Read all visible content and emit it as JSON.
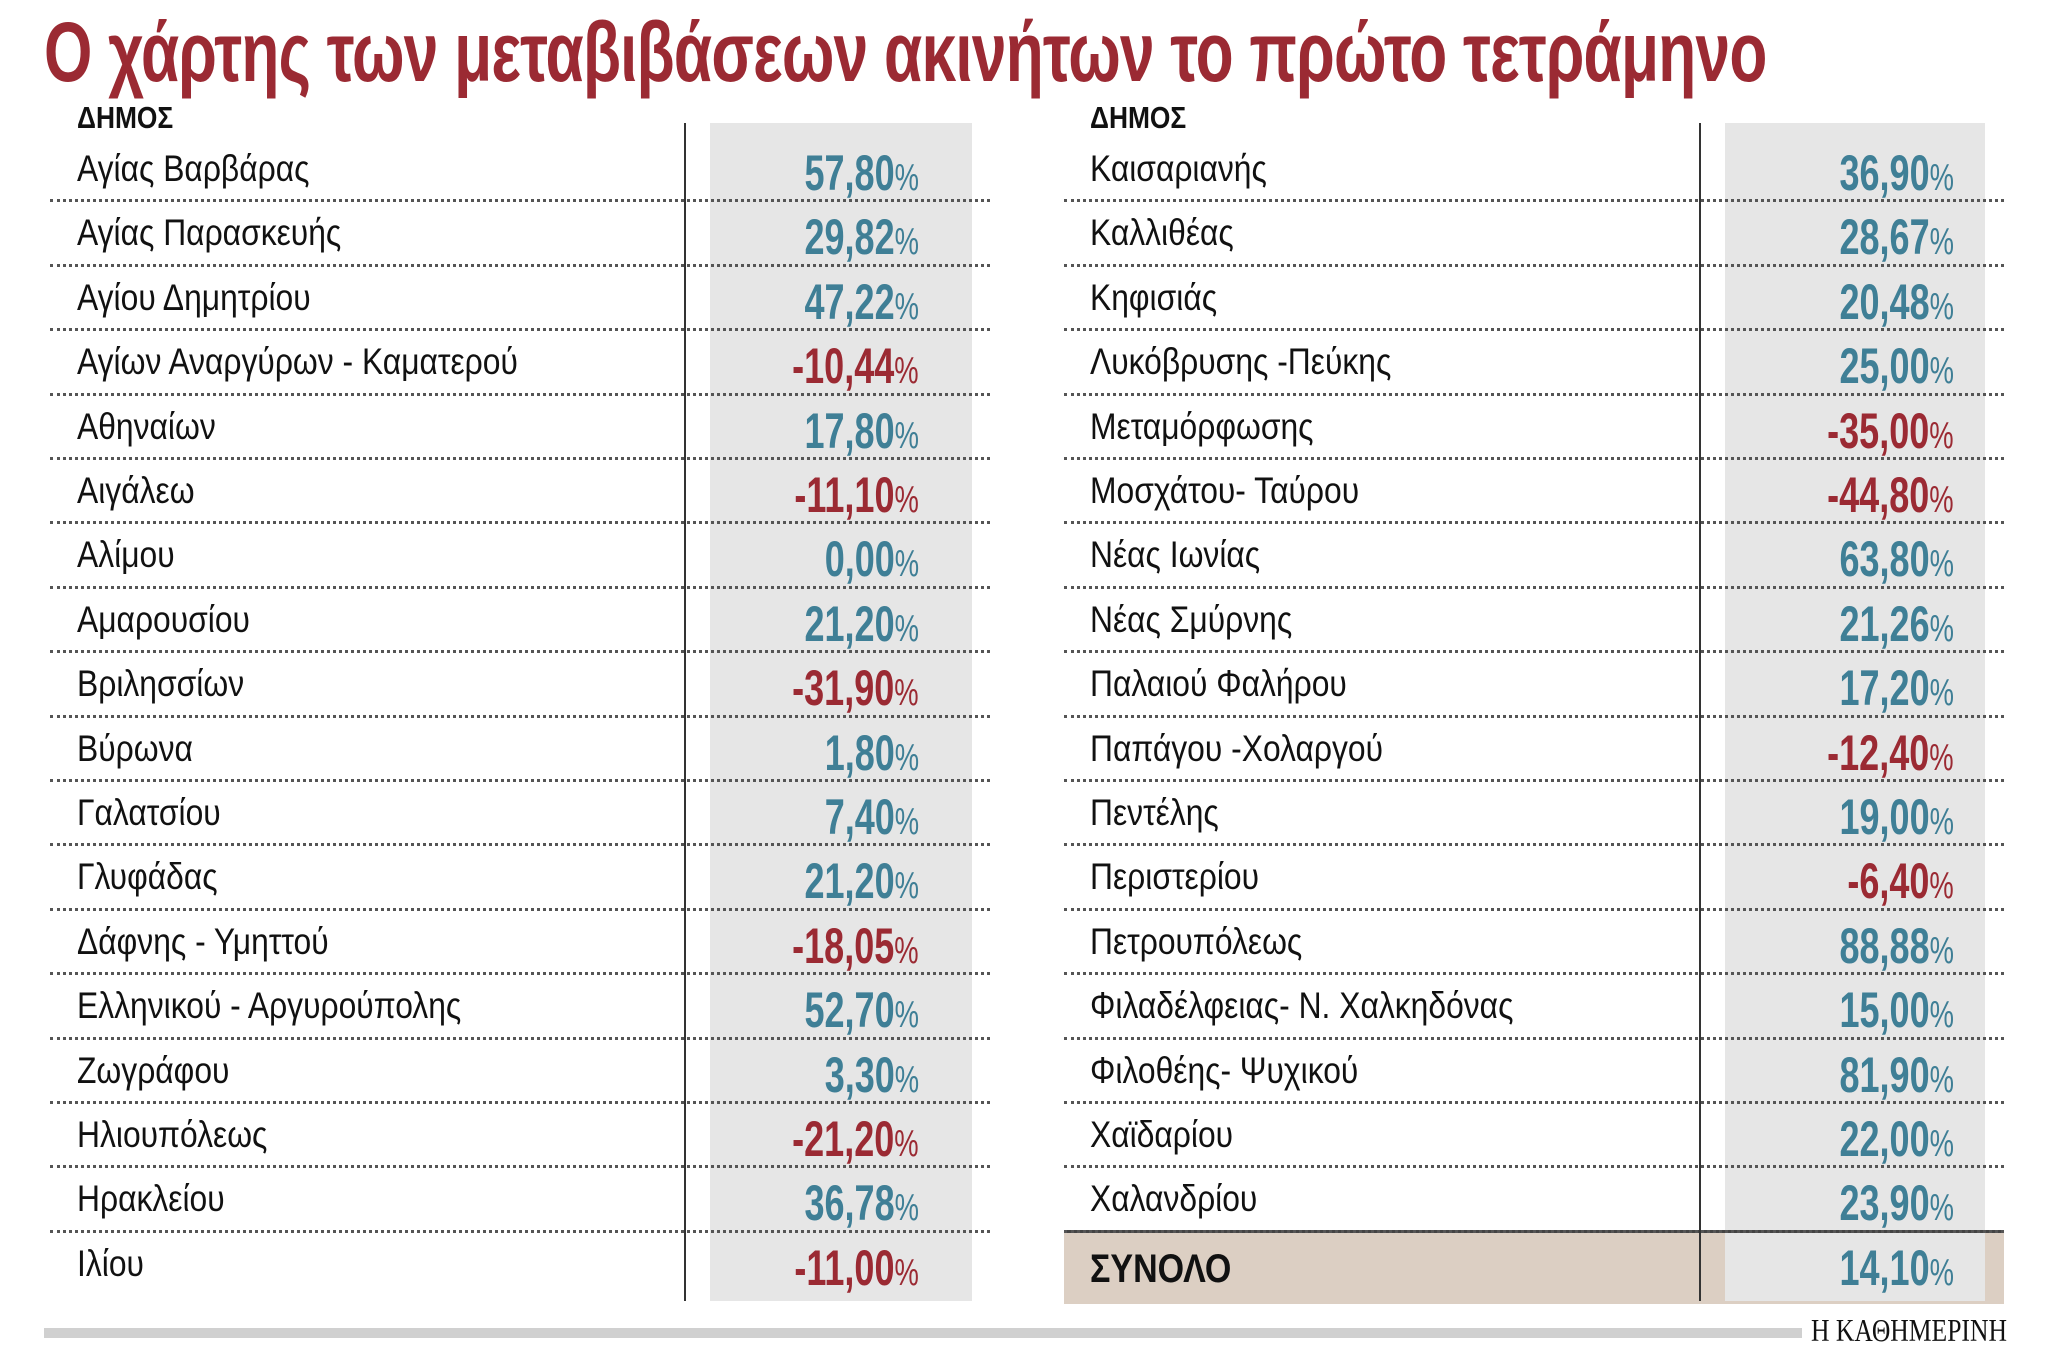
{
  "title": "Ο χάρτης των μεταβιβάσεων ακινήτων το πρώτο τετράμηνο",
  "column_header": "ΔΗΜΟΣ",
  "colors": {
    "title": "#9b2a33",
    "positive": "#3f7f96",
    "negative": "#9b2a33",
    "value_bg": "#e6e6e6",
    "total_bg": "#dccfc3"
  },
  "left_rows": [
    {
      "name": "Αγίας Βαρβάρας",
      "value": "57,80"
    },
    {
      "name": "Αγίας Παρασκευής",
      "value": "29,82"
    },
    {
      "name": "Αγίου Δημητρίου",
      "value": "47,22"
    },
    {
      "name": "Αγίων Αναργύρων - Καματερού",
      "value": "-10,44"
    },
    {
      "name": "Αθηναίων",
      "value": "17,80"
    },
    {
      "name": "Αιγάλεω",
      "value": "-11,10"
    },
    {
      "name": "Αλίμου",
      "value": "0,00"
    },
    {
      "name": "Αμαρουσίου",
      "value": "21,20"
    },
    {
      "name": "Βριλησσίων",
      "value": "-31,90"
    },
    {
      "name": "Βύρωνα",
      "value": "1,80"
    },
    {
      "name": "Γαλατσίου",
      "value": "7,40"
    },
    {
      "name": "Γλυφάδας",
      "value": "21,20"
    },
    {
      "name": "Δάφνης - Υμηττού",
      "value": "-18,05"
    },
    {
      "name": "Ελληνικού - Αργυρούπολης",
      "value": "52,70"
    },
    {
      "name": "Ζωγράφου",
      "value": "3,30"
    },
    {
      "name": "Ηλιουπόλεως",
      "value": "-21,20"
    },
    {
      "name": "Ηρακλείου",
      "value": "36,78"
    },
    {
      "name": "Ιλίου",
      "value": "-11,00"
    }
  ],
  "right_rows": [
    {
      "name": "Καισαριανής",
      "value": "36,90"
    },
    {
      "name": "Καλλιθέας",
      "value": "28,67"
    },
    {
      "name": "Κηφισιάς",
      "value": "20,48"
    },
    {
      "name": "Λυκόβρυσης -Πεύκης",
      "value": "25,00"
    },
    {
      "name": "Μεταμόρφωσης",
      "value": "-35,00"
    },
    {
      "name": "Μοσχάτου- Ταύρου",
      "value": "-44,80"
    },
    {
      "name": "Νέας Ιωνίας",
      "value": "63,80"
    },
    {
      "name": "Νέας Σμύρνης",
      "value": "21,26"
    },
    {
      "name": "Παλαιού Φαλήρου",
      "value": "17,20"
    },
    {
      "name": "Παπάγου -Χολαργού",
      "value": "-12,40"
    },
    {
      "name": "Πεντέλης",
      "value": "19,00"
    },
    {
      "name": "Περιστερίου",
      "value": "-6,40"
    },
    {
      "name": "Πετρουπόλεως",
      "value": "88,88"
    },
    {
      "name": "Φιλαδέλφειας- Ν. Χαλκηδόνας",
      "value": "15,00"
    },
    {
      "name": "Φιλοθέης- Ψυχικού",
      "value": "81,90"
    },
    {
      "name": "Χαϊδαρίου",
      "value": "22,00"
    },
    {
      "name": "Χαλανδρίου",
      "value": "23,90"
    }
  ],
  "total": {
    "label": "ΣΥΝΟΛΟ",
    "value": "14,10"
  },
  "percent_sign": "%",
  "source_logo": "Η ΚΑΘΗΜΕΡΙΝΗ"
}
